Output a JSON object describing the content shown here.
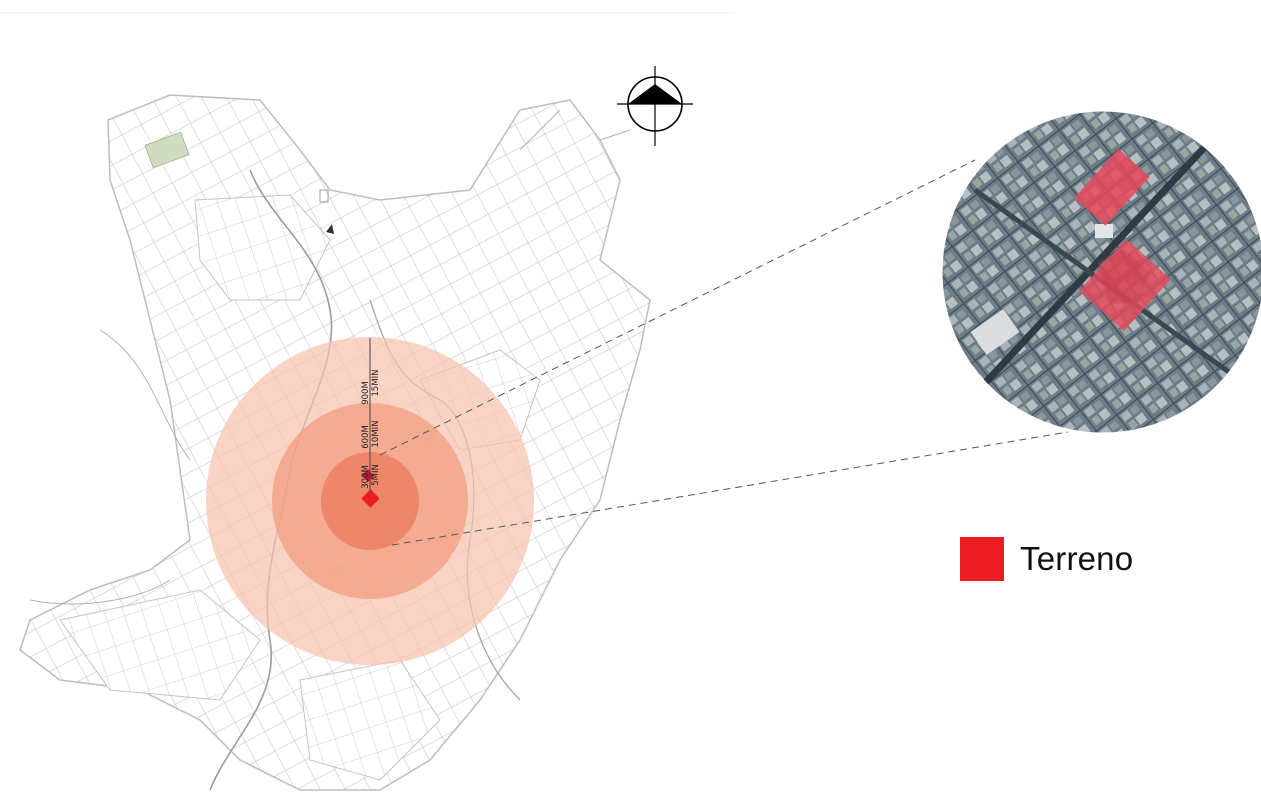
{
  "map": {
    "rings": [
      {
        "distance": "900M",
        "time": "15MIN",
        "color": "#f7c3ae"
      },
      {
        "distance": "600M",
        "time": "10MIN",
        "color": "#f2987a"
      },
      {
        "distance": "300M",
        "time": "5MIN",
        "color": "#ec7a5c"
      }
    ],
    "site_color": "#ed1c24",
    "street_color": "#c8c8c8",
    "north_arrow_icon": "north-arrow-icon"
  },
  "inset": {
    "photo_base": "#5f7280",
    "lot_fill": "#e8495a"
  },
  "legend": {
    "swatch_color": "#ed1c24",
    "label": "Terreno"
  }
}
